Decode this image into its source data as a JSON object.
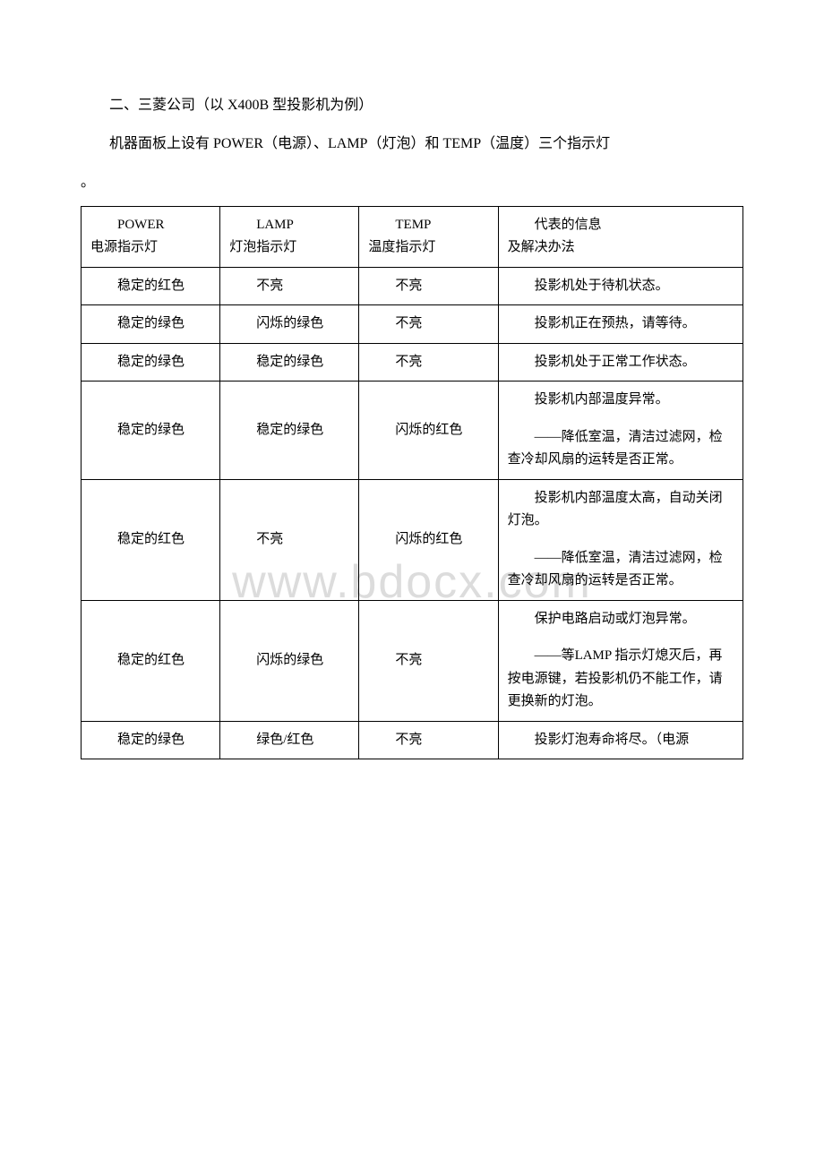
{
  "watermark": "www.bdocx.com",
  "intro": {
    "line1": "二、三菱公司（以 X400B 型投影机为例）",
    "line2": "机器面板上设有 POWER（电源）、LAMP（灯泡）和 TEMP（温度）三个指示灯",
    "line3": "。"
  },
  "table": {
    "headers": {
      "power": {
        "en": "POWER",
        "zh": "电源指示灯"
      },
      "lamp": {
        "en": "LAMP",
        "zh": "灯泡指示灯"
      },
      "temp": {
        "en": "TEMP",
        "zh": "温度指示灯"
      },
      "info": {
        "line1": "代表的信息",
        "line2": "及解决办法"
      }
    },
    "rows": [
      {
        "power": "稳定的红色",
        "lamp": "不亮",
        "temp": "不亮",
        "info1": "投影机处于待机状态。",
        "info2": ""
      },
      {
        "power": "稳定的绿色",
        "lamp": "闪烁的绿色",
        "temp": "不亮",
        "info1": "投影机正在预热，请等待。",
        "info2": ""
      },
      {
        "power": "稳定的绿色",
        "lamp": "稳定的绿色",
        "temp": "不亮",
        "info1": "投影机处于正常工作状态。",
        "info2": ""
      },
      {
        "power": "稳定的绿色",
        "lamp": "稳定的绿色",
        "temp": "闪烁的红色",
        "info1": "投影机内部温度异常。",
        "info2": "——降低室温，清洁过滤网，检查冷却风扇的运转是否正常。"
      },
      {
        "power": "稳定的红色",
        "lamp": "不亮",
        "temp": "闪烁的红色",
        "info1": "投影机内部温度太高，自动关闭灯泡。",
        "info2": "——降低室温，清洁过滤网，检查冷却风扇的运转是否正常。"
      },
      {
        "power": "稳定的红色",
        "lamp": "闪烁的绿色",
        "temp": "不亮",
        "info1": "保护电路启动或灯泡异常。",
        "info2": "——等LAMP 指示灯熄灭后，再按电源键，若投影机仍不能工作，请更换新的灯泡。"
      },
      {
        "power": "稳定的绿色",
        "lamp": "绿色/红色",
        "temp": "不亮",
        "info1": "投影灯泡寿命将尽。（电源",
        "info2": ""
      }
    ]
  }
}
